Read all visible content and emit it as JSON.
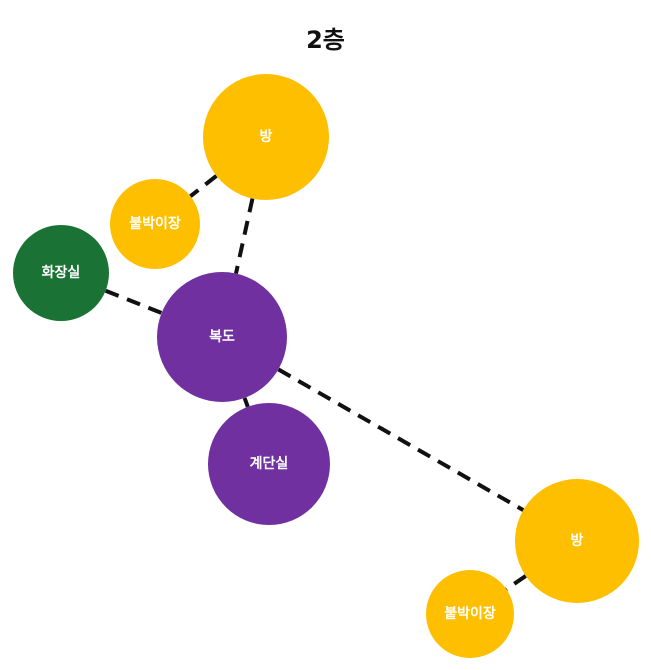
{
  "title": "2층",
  "colors": {
    "room": "#FDBF00",
    "closet": "#FDBF00",
    "bathroom": "#1A7335",
    "hall": "#7030A0",
    "edge": "#111111"
  },
  "nodes": [
    {
      "id": "room-top",
      "label": "방",
      "kind": "room"
    },
    {
      "id": "closet-top",
      "label": "붙박이장",
      "kind": "closet"
    },
    {
      "id": "bathroom",
      "label": "화장실",
      "kind": "bathroom"
    },
    {
      "id": "hallway",
      "label": "복도",
      "kind": "hall"
    },
    {
      "id": "stairwell",
      "label": "계단실",
      "kind": "hall"
    },
    {
      "id": "room-bottom",
      "label": "방",
      "kind": "room"
    },
    {
      "id": "closet-bottom",
      "label": "붙박이장",
      "kind": "closet"
    }
  ],
  "edges": [
    {
      "from": "room-top",
      "to": "closet-top"
    },
    {
      "from": "room-top",
      "to": "hallway"
    },
    {
      "from": "bathroom",
      "to": "hallway"
    },
    {
      "from": "hallway",
      "to": "stairwell"
    },
    {
      "from": "hallway",
      "to": "room-bottom"
    },
    {
      "from": "room-bottom",
      "to": "closet-bottom"
    }
  ]
}
